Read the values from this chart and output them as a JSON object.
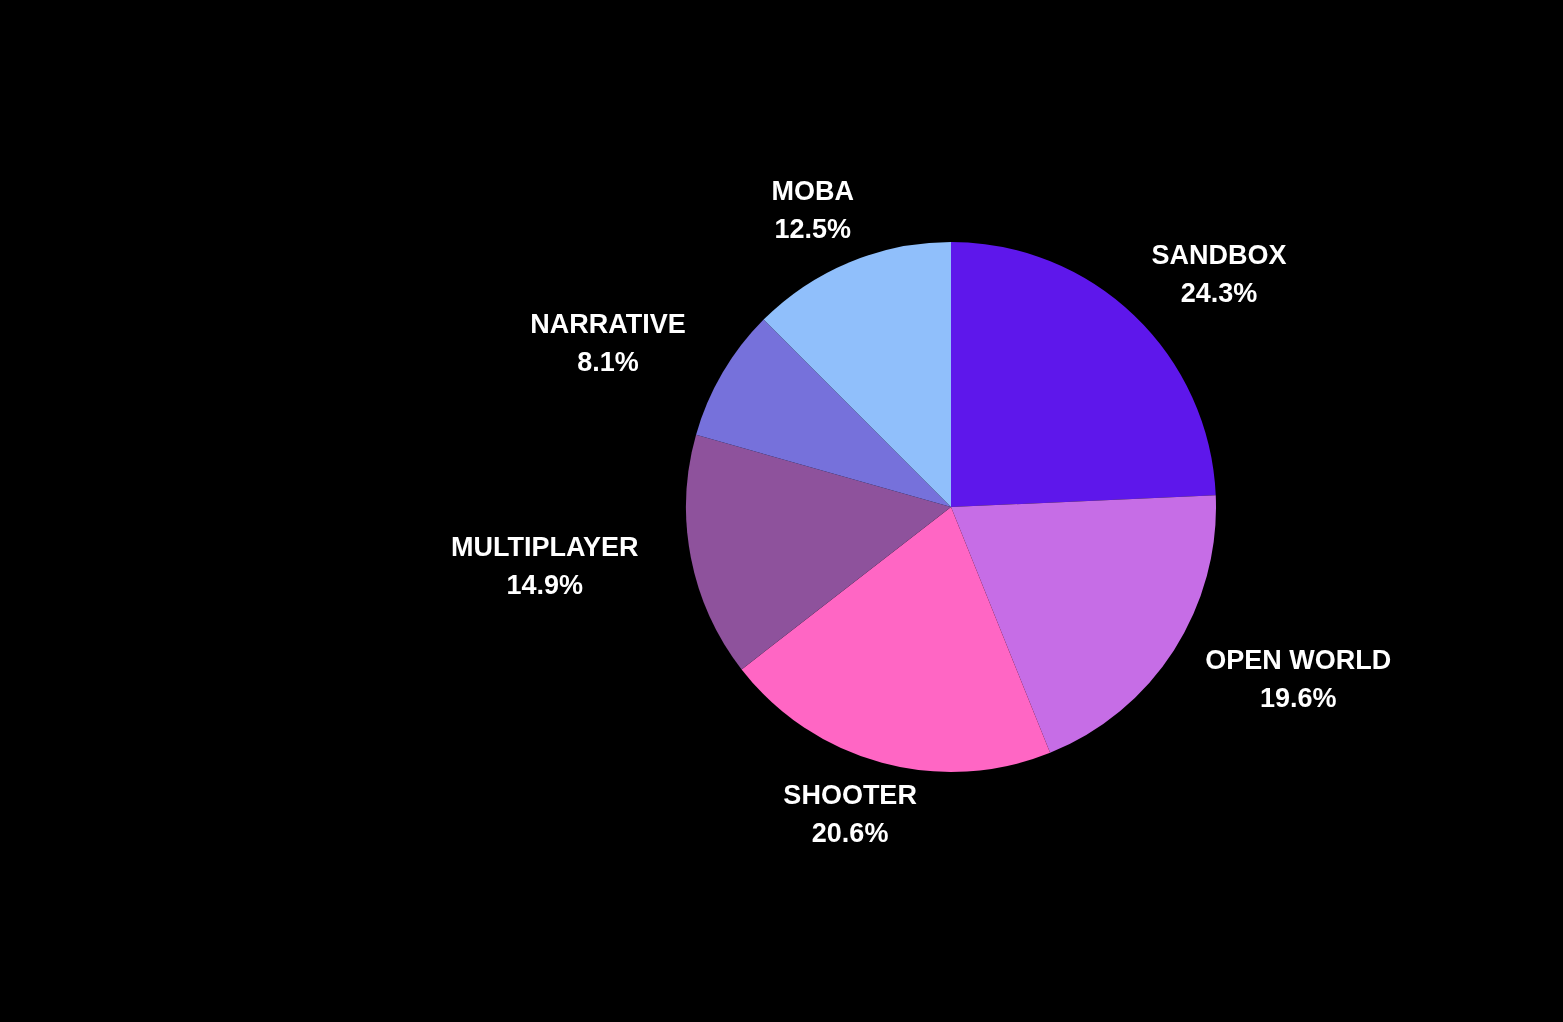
{
  "chart_data": {
    "type": "pie",
    "categories": [
      "SANDBOX",
      "OPEN WORLD",
      "SHOOTER",
      "MULTIPLAYER",
      "NARRATIVE",
      "MOBA"
    ],
    "values": [
      24.3,
      19.6,
      20.6,
      14.9,
      8.1,
      12.5
    ],
    "colors": [
      "#5e17eb",
      "#c66de6",
      "#ff66c4",
      "#8e529c",
      "#7671db",
      "#90bffb"
    ],
    "value_labels": [
      "24.3%",
      "19.6%",
      "20.6%",
      "14.9%",
      "8.1%",
      "12.5%"
    ],
    "legend": false
  }
}
